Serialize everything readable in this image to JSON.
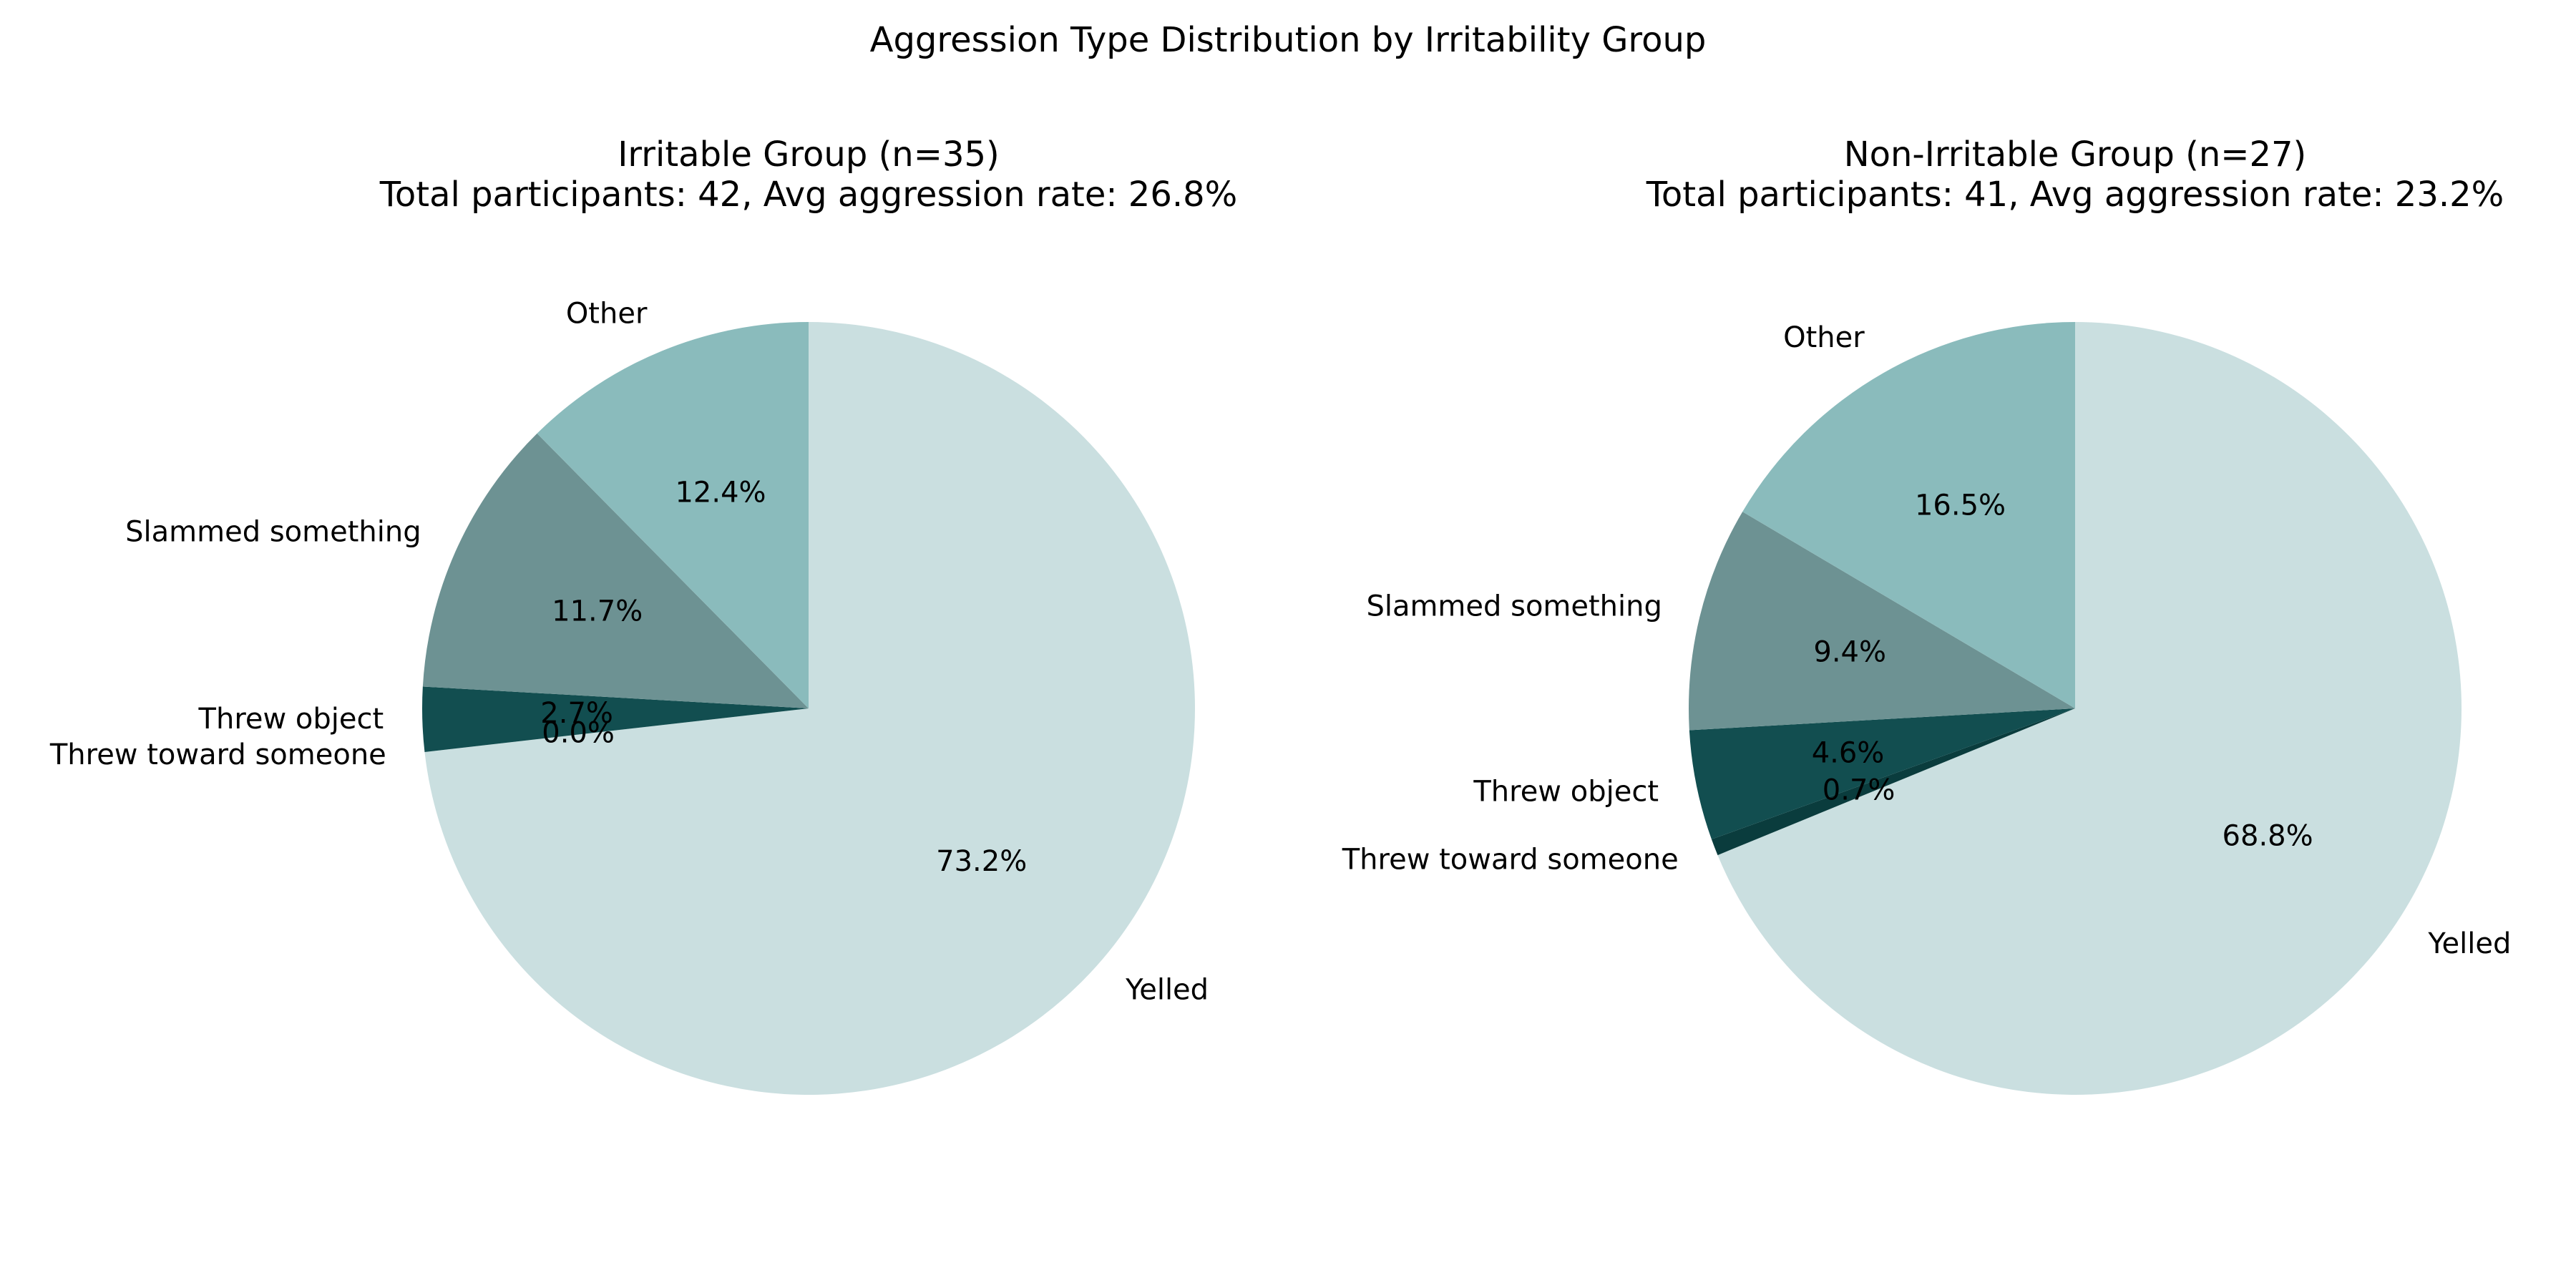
{
  "figure_title": "Aggression Type Distribution by Irritability Group",
  "chart_data": [
    {
      "type": "pie",
      "title": "Irritable Group (n=35)",
      "subtitle": "Total participants: 42, Avg aggression rate: 26.8%",
      "start_angle": 90,
      "direction": "clockwise",
      "slices": [
        {
          "label": "Yelled",
          "value": 73.2,
          "pct_label": "73.2%",
          "color": "#cadfe0"
        },
        {
          "label": "Threw toward someone",
          "value": 0.0,
          "pct_label": "0.0%",
          "color": "#0a3c3d"
        },
        {
          "label": "Threw object",
          "value": 2.7,
          "pct_label": "2.7%",
          "color": "#124e50"
        },
        {
          "label": "Slammed something",
          "value": 11.7,
          "pct_label": "11.7%",
          "color": "#6d9293"
        },
        {
          "label": "Other",
          "value": 12.4,
          "pct_label": "12.4%",
          "color": "#8abbbc"
        }
      ]
    },
    {
      "type": "pie",
      "title": "Non-Irritable Group (n=27)",
      "subtitle": "Total participants: 41, Avg aggression rate: 23.2%",
      "start_angle": 90,
      "direction": "clockwise",
      "slices": [
        {
          "label": "Yelled",
          "value": 68.8,
          "pct_label": "68.8%",
          "color": "#cadfe0"
        },
        {
          "label": "Threw toward someone",
          "value": 0.7,
          "pct_label": "0.7%",
          "color": "#0a3c3d"
        },
        {
          "label": "Threw object",
          "value": 4.6,
          "pct_label": "4.6%",
          "color": "#124e50"
        },
        {
          "label": "Slammed something",
          "value": 9.4,
          "pct_label": "9.4%",
          "color": "#6d9293"
        },
        {
          "label": "Other",
          "value": 16.5,
          "pct_label": "16.5%",
          "color": "#8abbbc"
        }
      ]
    }
  ]
}
